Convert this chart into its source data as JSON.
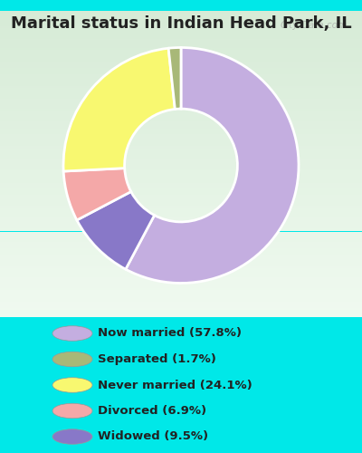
{
  "title": "Marital status in Indian Head Park, IL",
  "pie_values": [
    57.8,
    9.5,
    6.9,
    24.1,
    1.7
  ],
  "pie_colors": [
    "#c4aee0",
    "#8878c8",
    "#f4a8a8",
    "#f8f870",
    "#a8b878"
  ],
  "legend_labels": [
    "Now married (57.8%)",
    "Separated (1.7%)",
    "Never married (24.1%)",
    "Divorced (6.9%)",
    "Widowed (9.5%)"
  ],
  "legend_colors": [
    "#c4aee0",
    "#a8b878",
    "#f8f870",
    "#f4a8a8",
    "#8878c8"
  ],
  "title_color": "#222222",
  "title_fontsize": 13,
  "watermark": "City-Data.com",
  "fig_bg": "#00e8e8",
  "chart_bg_top": "#e8f5ee",
  "chart_bg_bottom": "#c8e8d0",
  "figsize": [
    4.0,
    5.0
  ],
  "dpi": 100
}
